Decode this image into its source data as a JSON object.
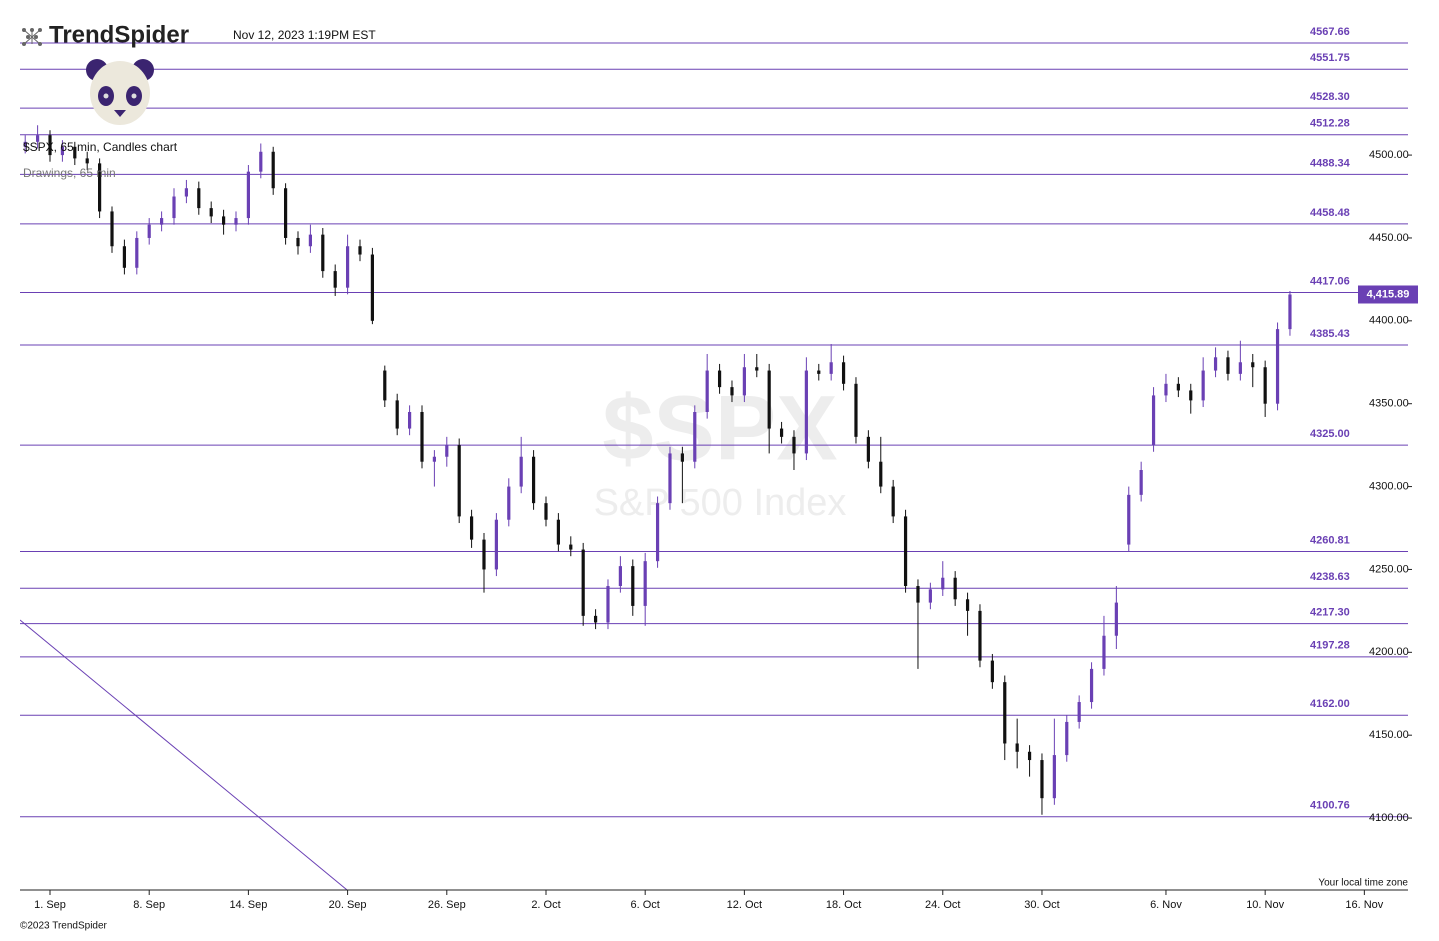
{
  "chart_data": {
    "type": "candlestick",
    "logo": "TrendSpider",
    "timestamp": "Nov 12, 2023 1:19PM EST",
    "subtitle": "$SPX, 65 min, Candles chart",
    "drawings_label": "Drawings, 65 min",
    "watermark_symbol": "$SPX",
    "watermark_name": "S&P 500 Index",
    "timezone_note": "Your local time zone",
    "copyright": "©2023 TrendSpider",
    "up_color": "#6a40b4",
    "down_color": "#111111",
    "level_color": "#6a40b4",
    "xlim": [
      -1.21,
      54.76
    ],
    "ylim": [
      4056.6,
      4581.5
    ],
    "xticks": [
      {
        "value": 0,
        "label": "1. Sep"
      },
      {
        "value": 4,
        "label": "8. Sep"
      },
      {
        "value": 8,
        "label": "14. Sep"
      },
      {
        "value": 12,
        "label": "20. Sep"
      },
      {
        "value": 16,
        "label": "26. Sep"
      },
      {
        "value": 20,
        "label": "2. Oct"
      },
      {
        "value": 24,
        "label": "6. Oct"
      },
      {
        "value": 28,
        "label": "12. Oct"
      },
      {
        "value": 32,
        "label": "18. Oct"
      },
      {
        "value": 36,
        "label": "24. Oct"
      },
      {
        "value": 40,
        "label": "30. Oct"
      },
      {
        "value": 45,
        "label": "6. Nov"
      },
      {
        "value": 49,
        "label": "10. Nov"
      },
      {
        "value": 53,
        "label": "16. Nov"
      }
    ],
    "yticks": [
      {
        "value": 4100,
        "label": "4100.00"
      },
      {
        "value": 4150,
        "label": "4150.00"
      },
      {
        "value": 4200,
        "label": "4200.00"
      },
      {
        "value": 4250,
        "label": "4250.00"
      },
      {
        "value": 4300,
        "label": "4300.00"
      },
      {
        "value": 4350,
        "label": "4350.00"
      },
      {
        "value": 4400,
        "label": "4400.00"
      },
      {
        "value": 4450,
        "label": "4450.00"
      },
      {
        "value": 4500,
        "label": "4500.00"
      }
    ],
    "levels": [
      {
        "value": 4567.66,
        "label": "4567.66"
      },
      {
        "value": 4551.75,
        "label": "4551.75"
      },
      {
        "value": 4528.3,
        "label": "4528.30"
      },
      {
        "value": 4512.28,
        "label": "4512.28"
      },
      {
        "value": 4488.34,
        "label": "4488.34"
      },
      {
        "value": 4458.48,
        "label": "4458.48"
      },
      {
        "value": 4417.06,
        "label": "4417.06"
      },
      {
        "value": 4385.43,
        "label": "4385.43"
      },
      {
        "value": 4325,
        "label": "4325.00"
      },
      {
        "value": 4260.81,
        "label": "4260.81"
      },
      {
        "value": 4238.63,
        "label": "4238.63"
      },
      {
        "value": 4217.3,
        "label": "4217.30"
      },
      {
        "value": 4197.28,
        "label": "4197.28"
      },
      {
        "value": 4162,
        "label": "4162.00"
      },
      {
        "value": 4100.76,
        "label": "4100.76"
      }
    ],
    "trendline": {
      "x": [
        -1.21,
        11.98
      ],
      "y": [
        4219.5,
        4056.6
      ]
    },
    "last_price": {
      "value": 4415.89,
      "label": "4,415.89"
    },
    "x": [
      -1,
      -0.5,
      0,
      0.5,
      1,
      1.5,
      2,
      2.5,
      3,
      3.5,
      4,
      4.5,
      5,
      5.5,
      6,
      6.5,
      7,
      7.5,
      8,
      8.5,
      9,
      9.5,
      10,
      10.5,
      11,
      11.5,
      12,
      12.5,
      13,
      13.5,
      14,
      14.5,
      15,
      15.5,
      16,
      16.5,
      17,
      17.5,
      18,
      18.5,
      19,
      19.5,
      20,
      20.5,
      21,
      21.5,
      22,
      22.5,
      23,
      23.5,
      24,
      24.5,
      25,
      25.5,
      26,
      26.5,
      27,
      27.5,
      28,
      28.5,
      29,
      29.5,
      30,
      30.5,
      31,
      31.5,
      32,
      32.5,
      33,
      33.5,
      34,
      34.5,
      35,
      35.5,
      36,
      36.5,
      37,
      37.5,
      38,
      38.5,
      39,
      39.5,
      40,
      40.5,
      41,
      41.5,
      42,
      42.5,
      43,
      43.5,
      44,
      44.5,
      45,
      45.5,
      46,
      46.5,
      47,
      47.5,
      48,
      48.5,
      49,
      49.5,
      50
    ],
    "open": [
      4505,
      4508,
      4512,
      4500,
      4505,
      4498,
      4495,
      4466,
      4445,
      4432,
      4450,
      4458,
      4462,
      4475,
      4480,
      4468,
      4463,
      4458,
      4462,
      4490,
      4502,
      4480,
      4450,
      4445,
      4452,
      4430,
      4420,
      4445,
      4440,
      4370,
      4352,
      4335,
      4345,
      4315,
      4318,
      4325,
      4282,
      4268,
      4250,
      4280,
      4300,
      4318,
      4290,
      4280,
      4265,
      4262,
      4222,
      4218,
      4240,
      4252,
      4228,
      4255,
      4290,
      4320,
      4315,
      4345,
      4370,
      4360,
      4355,
      4372,
      4370,
      4335,
      4330,
      4320,
      4370,
      4368,
      4375,
      4362,
      4330,
      4315,
      4300,
      4282,
      4240,
      4230,
      4238,
      4245,
      4232,
      4225,
      4195,
      4182,
      4145,
      4140,
      4135,
      4112,
      4138,
      4158,
      4170,
      4190,
      4210,
      4265,
      4295,
      4325,
      4355,
      4362,
      4358,
      4352,
      4370,
      4378,
      4368,
      4375,
      4372,
      4350,
      4395
    ],
    "high": [
      4512,
      4518,
      4515,
      4509,
      4508,
      4502,
      4498,
      4469,
      4449,
      4454,
      4462,
      4466,
      4480,
      4485,
      4484,
      4472,
      4467,
      4466,
      4494,
      4507,
      4505,
      4483,
      4454,
      4458,
      4456,
      4434,
      4452,
      4449,
      4444,
      4373,
      4356,
      4349,
      4349,
      4322,
      4330,
      4329,
      4286,
      4272,
      4284,
      4305,
      4330,
      4322,
      4294,
      4284,
      4270,
      4266,
      4226,
      4244,
      4258,
      4256,
      4260,
      4294,
      4324,
      4324,
      4349,
      4380,
      4374,
      4364,
      4380,
      4380,
      4374,
      4339,
      4334,
      4378,
      4374,
      4386,
      4379,
      4366,
      4334,
      4330,
      4304,
      4286,
      4244,
      4242,
      4255,
      4249,
      4236,
      4229,
      4199,
      4186,
      4160,
      4144,
      4139,
      4160,
      4162,
      4174,
      4194,
      4222,
      4240,
      4300,
      4315,
      4360,
      4368,
      4366,
      4362,
      4378,
      4384,
      4382,
      4388,
      4380,
      4376,
      4399,
      4418
    ],
    "low": [
      4501,
      4504,
      4496,
      4496,
      4494,
      4491,
      4462,
      4441,
      4428,
      4428,
      4446,
      4454,
      4458,
      4471,
      4464,
      4459,
      4452,
      4454,
      4458,
      4486,
      4476,
      4446,
      4440,
      4441,
      4426,
      4415,
      4416,
      4436,
      4398,
      4348,
      4331,
      4331,
      4311,
      4300,
      4312,
      4278,
      4263,
      4236,
      4246,
      4276,
      4296,
      4286,
      4276,
      4261,
      4258,
      4216,
      4214,
      4214,
      4236,
      4222,
      4216,
      4251,
      4286,
      4290,
      4311,
      4341,
      4356,
      4351,
      4351,
      4366,
      4320,
      4326,
      4310,
      4316,
      4364,
      4364,
      4358,
      4326,
      4311,
      4296,
      4278,
      4236,
      4190,
      4226,
      4234,
      4228,
      4210,
      4191,
      4178,
      4135,
      4130,
      4125,
      4102,
      4108,
      4134,
      4154,
      4166,
      4186,
      4202,
      4261,
      4291,
      4321,
      4351,
      4354,
      4344,
      4348,
      4366,
      4364,
      4364,
      4360,
      4342,
      4346,
      4391
    ],
    "close": [
      4508,
      4512,
      4500,
      4505,
      4498,
      4495,
      4466,
      4445,
      4432,
      4450,
      4458,
      4462,
      4475,
      4480,
      4468,
      4463,
      4458,
      4462,
      4490,
      4502,
      4480,
      4450,
      4445,
      4452,
      4430,
      4420,
      4445,
      4440,
      4400,
      4352,
      4335,
      4345,
      4315,
      4318,
      4325,
      4282,
      4268,
      4250,
      4280,
      4300,
      4318,
      4290,
      4280,
      4265,
      4262,
      4222,
      4218,
      4240,
      4252,
      4228,
      4255,
      4290,
      4320,
      4315,
      4345,
      4370,
      4360,
      4355,
      4372,
      4370,
      4335,
      4330,
      4320,
      4370,
      4368,
      4375,
      4362,
      4330,
      4315,
      4300,
      4282,
      4240,
      4230,
      4238,
      4245,
      4232,
      4225,
      4195,
      4182,
      4145,
      4140,
      4135,
      4112,
      4138,
      4158,
      4170,
      4190,
      4210,
      4230,
      4295,
      4310,
      4355,
      4362,
      4358,
      4352,
      4370,
      4378,
      4368,
      4375,
      4372,
      4350,
      4395,
      4415.89
    ]
  }
}
